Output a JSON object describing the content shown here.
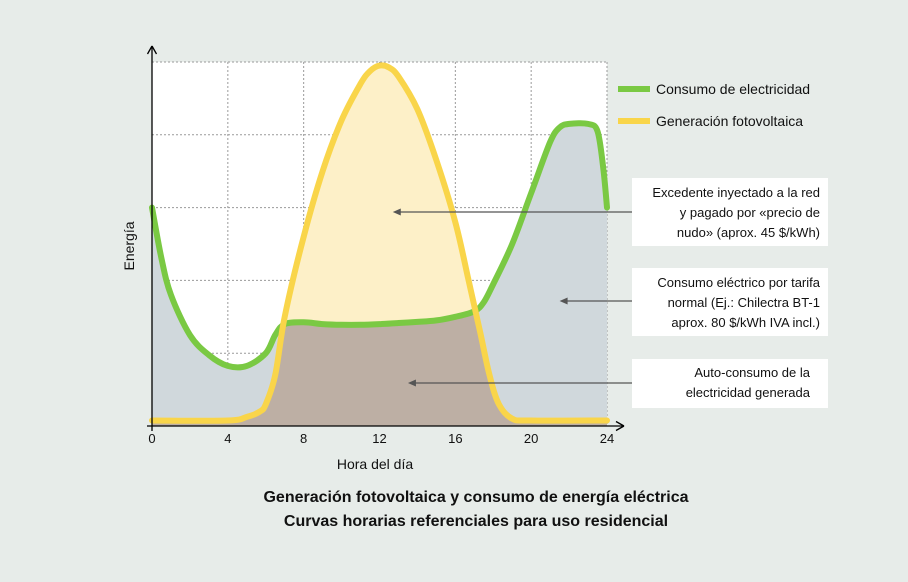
{
  "chart_data": {
    "type": "area",
    "xlabel": "Hora del día",
    "ylabel": "Energía",
    "xlim": [
      0,
      24
    ],
    "ylim": [
      0,
      10
    ],
    "x_ticks": [
      0,
      4,
      8,
      12,
      16,
      20,
      24
    ],
    "grid": true,
    "legend_position": "top-right",
    "series": [
      {
        "name": "Consumo de electricidad",
        "color": "#7ac943",
        "points": [
          [
            0,
            6.0
          ],
          [
            0.5,
            4.6
          ],
          [
            1,
            3.6
          ],
          [
            2,
            2.5
          ],
          [
            3,
            1.95
          ],
          [
            4,
            1.65
          ],
          [
            5,
            1.65
          ],
          [
            6,
            2.0
          ],
          [
            6.5,
            2.5
          ],
          [
            7,
            2.8
          ],
          [
            8,
            2.85
          ],
          [
            9,
            2.8
          ],
          [
            10,
            2.78
          ],
          [
            11,
            2.78
          ],
          [
            12,
            2.8
          ],
          [
            13,
            2.83
          ],
          [
            14,
            2.86
          ],
          [
            15,
            2.9
          ],
          [
            16,
            3.0
          ],
          [
            17,
            3.15
          ],
          [
            17.5,
            3.4
          ],
          [
            18,
            3.9
          ],
          [
            19,
            5.0
          ],
          [
            20,
            6.4
          ],
          [
            21,
            7.8
          ],
          [
            21.5,
            8.2
          ],
          [
            22,
            8.3
          ],
          [
            23,
            8.3
          ],
          [
            23.5,
            8.1
          ],
          [
            23.8,
            7.1
          ],
          [
            24,
            6.0
          ]
        ]
      },
      {
        "name": "Generación fotovoltaica",
        "color": "#f9d54a",
        "points": [
          [
            0,
            0.15
          ],
          [
            4,
            0.15
          ],
          [
            5,
            0.25
          ],
          [
            5.7,
            0.4
          ],
          [
            6,
            0.6
          ],
          [
            6.5,
            1.4
          ],
          [
            7,
            3.0
          ],
          [
            8,
            5.2
          ],
          [
            9,
            7.0
          ],
          [
            10,
            8.4
          ],
          [
            11,
            9.4
          ],
          [
            11.5,
            9.75
          ],
          [
            12,
            9.9
          ],
          [
            12.5,
            9.85
          ],
          [
            13,
            9.6
          ],
          [
            14,
            8.7
          ],
          [
            15,
            7.3
          ],
          [
            16,
            5.6
          ],
          [
            16.7,
            4.0
          ],
          [
            17.3,
            2.6
          ],
          [
            17.8,
            1.4
          ],
          [
            18.3,
            0.6
          ],
          [
            19,
            0.2
          ],
          [
            20,
            0.15
          ],
          [
            24,
            0.15
          ]
        ]
      }
    ],
    "annotations": [
      {
        "key": "excedente",
        "lines": [
          "Excedente inyectado a la red",
          "y pagado por «precio de",
          "nudo» (aprox. 45 $/kWh)"
        ],
        "arrow_to": [
          12.7,
          5.9
        ]
      },
      {
        "key": "tarifa",
        "lines": [
          "Consumo eléctrico por tarifa",
          "normal (Ej.: Chilectra BT-1",
          "aprox. 80 $/kWh IVA incl.)"
        ],
        "arrow_to": [
          21.5,
          3.5
        ]
      },
      {
        "key": "autoconsumo",
        "lines": [
          "Auto-consumo de la",
          "electricidad generada"
        ],
        "arrow_to": [
          13.5,
          1.2
        ]
      }
    ],
    "colors": {
      "background": "#e7ece9",
      "plot_background": "#ffffff",
      "consumption_fill": "#d0d8dc",
      "self_consumption_fill": "#bdafa4",
      "surplus_fill": "#fdf0c8",
      "grid": "#9a9a9a",
      "axis": "#000000",
      "arrow": "#555555"
    }
  },
  "caption": {
    "line1": "Generación fotovoltaica y consumo de energía eléctrica",
    "line2": "Curvas horarias referenciales para uso residencial"
  }
}
